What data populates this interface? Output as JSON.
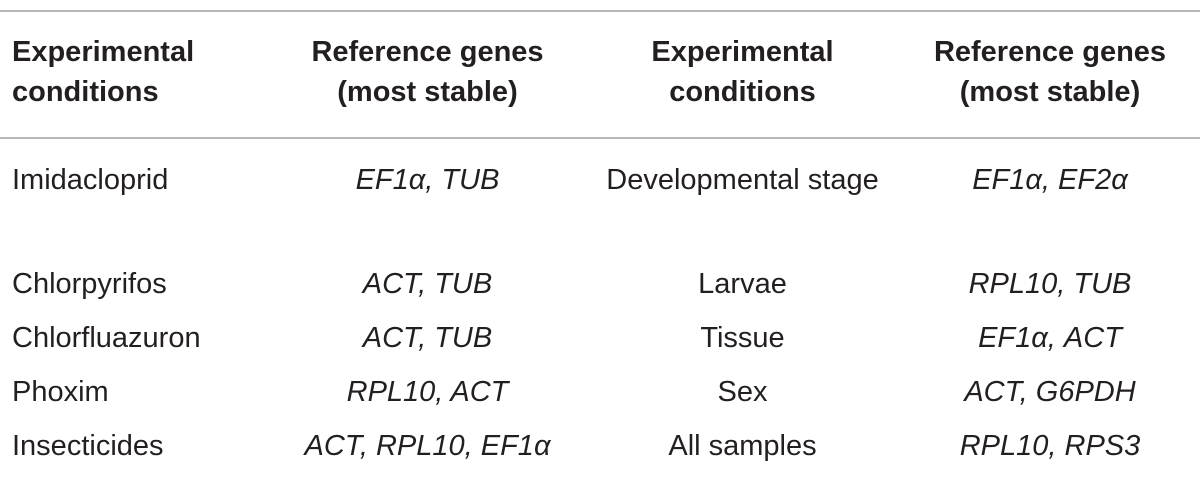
{
  "table": {
    "headers": [
      "Experimental conditions",
      "Reference genes (most stable)",
      "Experimental conditions",
      "Reference genes (most stable)"
    ],
    "rows": [
      {
        "condition_left": "Imidacloprid",
        "genes_left": "EF1α, TUB",
        "condition_right": "Developmental stage",
        "genes_right": "EF1α, EF2α"
      },
      {
        "condition_left": "Chlorpyrifos",
        "genes_left": "ACT, TUB",
        "condition_right": "Larvae",
        "genes_right": "RPL10, TUB"
      },
      {
        "condition_left": "Chlorfluazuron",
        "genes_left": "ACT, TUB",
        "condition_right": "Tissue",
        "genes_right": "EF1α, ACT"
      },
      {
        "condition_left": "Phoxim",
        "genes_left": "RPL10, ACT",
        "condition_right": "Sex",
        "genes_right": "ACT, G6PDH"
      },
      {
        "condition_left": "Insecticides",
        "genes_left": "ACT, RPL10, EF1α",
        "condition_right": "All samples",
        "genes_right": "RPL10, RPS3"
      }
    ]
  }
}
